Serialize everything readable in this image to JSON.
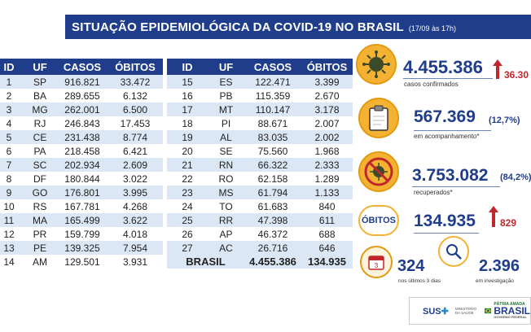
{
  "header": {
    "title": "SITUAÇÃO EPIDEMIOLÓGICA DA COVID-19 NO BRASIL",
    "date_range": "(17/09 às 17h)"
  },
  "table": {
    "columns": [
      "ID",
      "UF",
      "CASOS",
      "ÓBITOS"
    ],
    "left_rows": [
      [
        "1",
        "SP",
        "916.821",
        "33.472"
      ],
      [
        "2",
        "BA",
        "289.655",
        "6.132"
      ],
      [
        "3",
        "MG",
        "262.001",
        "6.500"
      ],
      [
        "4",
        "RJ",
        "246.843",
        "17.453"
      ],
      [
        "5",
        "CE",
        "231.438",
        "8.774"
      ],
      [
        "6",
        "PA",
        "218.458",
        "6.421"
      ],
      [
        "7",
        "SC",
        "202.934",
        "2.609"
      ],
      [
        "8",
        "DF",
        "180.844",
        "3.022"
      ],
      [
        "9",
        "GO",
        "176.801",
        "3.995"
      ],
      [
        "10",
        "RS",
        "167.781",
        "4.268"
      ],
      [
        "11",
        "MA",
        "165.499",
        "3.622"
      ],
      [
        "12",
        "PR",
        "159.799",
        "4.018"
      ],
      [
        "13",
        "PE",
        "139.325",
        "7.954"
      ],
      [
        "14",
        "AM",
        "129.501",
        "3.931"
      ]
    ],
    "right_rows": [
      [
        "15",
        "ES",
        "122.471",
        "3.399"
      ],
      [
        "16",
        "PB",
        "115.359",
        "2.670"
      ],
      [
        "17",
        "MT",
        "110.147",
        "3.178"
      ],
      [
        "18",
        "PI",
        "88.671",
        "2.007"
      ],
      [
        "19",
        "AL",
        "83.035",
        "2.002"
      ],
      [
        "20",
        "SE",
        "75.560",
        "1.968"
      ],
      [
        "21",
        "RN",
        "66.322",
        "2.333"
      ],
      [
        "22",
        "RO",
        "62.158",
        "1.289"
      ],
      [
        "23",
        "MS",
        "61.794",
        "1.133"
      ],
      [
        "24",
        "TO",
        "61.683",
        "840"
      ],
      [
        "25",
        "RR",
        "47.398",
        "611"
      ],
      [
        "26",
        "AP",
        "46.372",
        "688"
      ],
      [
        "27",
        "AC",
        "26.716",
        "646"
      ]
    ],
    "total": {
      "label": "BRASIL",
      "cases": "4.455.386",
      "deaths": "134.935"
    }
  },
  "stats": {
    "confirmed": {
      "value": "4.455.386",
      "increase": "36.30",
      "label": "casos confirmados"
    },
    "monitoring": {
      "value": "567.369",
      "percent": "(12,7%)",
      "label": "em acompanhamento*"
    },
    "recovered": {
      "value": "3.753.082",
      "percent": "(84,2%)",
      "label": "recuperados*"
    },
    "deaths": {
      "badge": "ÓBITOS",
      "value": "134.935",
      "increase": "829"
    },
    "last_days": {
      "value": "324",
      "label": "nos últimos 3 dias",
      "calendar_num": "3"
    },
    "investigation": {
      "value": "2.396",
      "label": "em investigação"
    }
  },
  "footer": {
    "sus": "SUS",
    "ministry": "MINISTÉRIO DA SAÚDE",
    "patria": "PÁTRIA AMADA",
    "brasil": "BRASIL",
    "gov": "GOVERNO FEDERAL"
  },
  "colors": {
    "navy": "#1f3d8a",
    "stripe": "#dce7f5",
    "accent": "#f4b233",
    "red": "#c0272d"
  }
}
